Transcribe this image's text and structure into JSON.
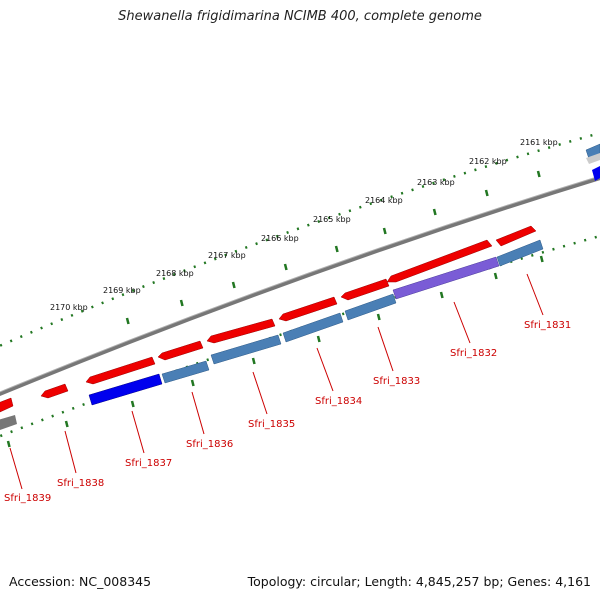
{
  "title": "Shewanella frigidimarina NCIMB 400, complete genome",
  "footer": {
    "accession": "Accession: NC_008345",
    "summary": "Topology: circular; Length: 4,845,257 bp; Genes: 4,161"
  },
  "kbp_labels": [
    "2161 kbp",
    "2162 kbp",
    "2163 kbp",
    "2164 kbp",
    "2165 kbp",
    "2166 kbp",
    "2167 kbp",
    "2168 kbp",
    "2169 kbp",
    "2170 kbp"
  ],
  "gene_labels": [
    "Sfri_1831",
    "Sfri_1832",
    "Sfri_1833",
    "Sfri_1834",
    "Sfri_1835",
    "Sfri_1836",
    "Sfri_1837",
    "Sfri_1838",
    "Sfri_1839"
  ],
  "colors": {
    "feature_red": "#ee0000",
    "feature_blue": "#0000ee",
    "feature_steel": "#4a7fb5",
    "backbone": "#777777",
    "tick_green": "#227722",
    "label_red": "#cc0000"
  }
}
